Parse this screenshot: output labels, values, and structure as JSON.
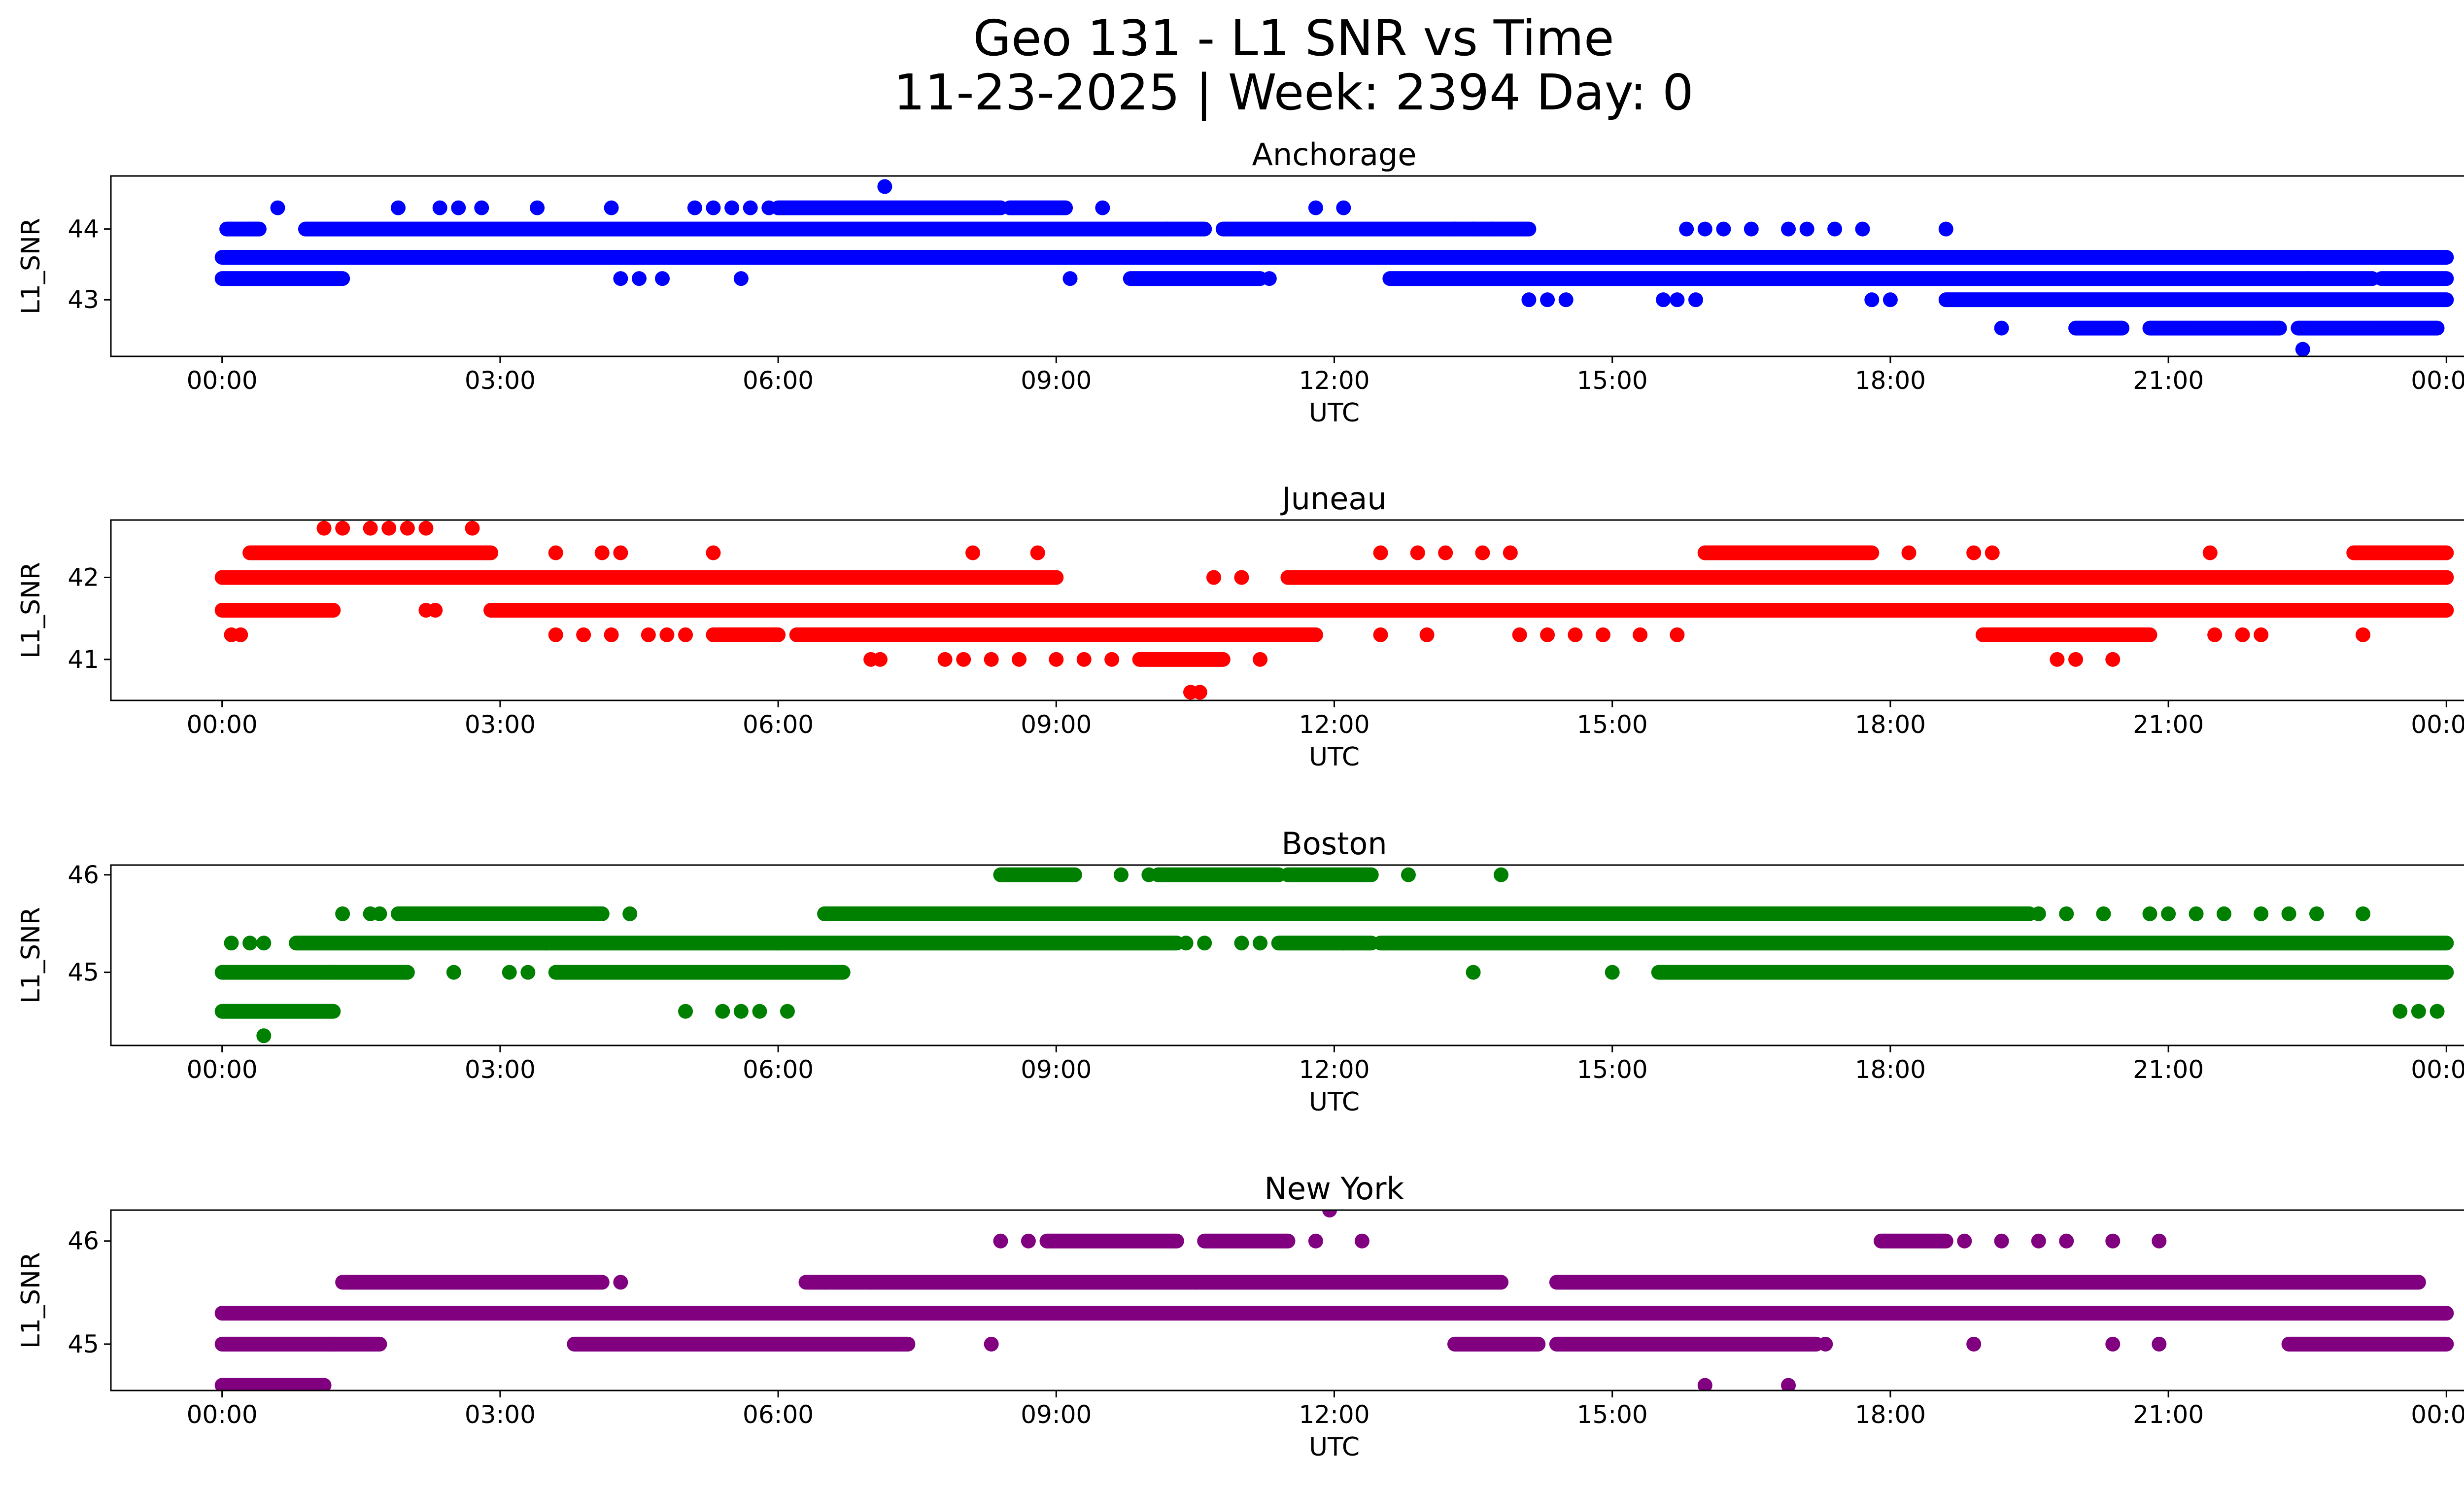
{
  "figure": {
    "title_line1": "Geo 131 - L1 SNR vs Time",
    "title_line2": "11-23-2025 | Week: 2394 Day: 0"
  },
  "chart_data": [
    {
      "type": "scatter",
      "title": "Anchorage",
      "xlabel": "UTC",
      "ylabel": "L1_SNR",
      "color": "#0000ff",
      "xlim": [
        -1.2,
        25.2
      ],
      "ylim": [
        42.2,
        44.75
      ],
      "x_ticks": [
        "00:00",
        "03:00",
        "06:00",
        "09:00",
        "12:00",
        "15:00",
        "18:00",
        "21:00",
        "00:00"
      ],
      "y_ticks": [
        43,
        44
      ],
      "levels": [
        {
          "y": 43.6,
          "segments": [
            [
              0.0,
              24.0
            ]
          ]
        },
        {
          "y": 44.0,
          "segments": [
            [
              0.05,
              0.4
            ],
            [
              0.9,
              10.6
            ],
            [
              10.8,
              13.3
            ],
            [
              13.3,
              14.1
            ]
          ]
        },
        {
          "y": 43.3,
          "segments": [
            [
              0.0,
              1.3
            ],
            [
              9.8,
              11.2
            ],
            [
              12.6,
              23.2
            ],
            [
              23.3,
              24.0
            ]
          ]
        },
        {
          "y": 43.0,
          "segments": [
            [
              18.6,
              24.0
            ]
          ]
        },
        {
          "y": 42.6,
          "segments": [
            [
              20.0,
              20.5
            ],
            [
              20.8,
              22.2
            ],
            [
              22.4,
              23.9
            ]
          ]
        },
        {
          "y": 44.3,
          "segments": [
            [
              6.0,
              8.4
            ],
            [
              8.5,
              9.1
            ]
          ]
        }
      ],
      "points": [
        {
          "x": 0.3,
          "y": 44.0
        },
        {
          "x": 0.35,
          "y": 44.0
        },
        {
          "x": 0.6,
          "y": 44.3
        },
        {
          "x": 1.9,
          "y": 44.3
        },
        {
          "x": 2.35,
          "y": 44.3
        },
        {
          "x": 2.55,
          "y": 44.3
        },
        {
          "x": 2.8,
          "y": 44.3
        },
        {
          "x": 3.4,
          "y": 44.3
        },
        {
          "x": 4.2,
          "y": 44.3
        },
        {
          "x": 5.1,
          "y": 44.3
        },
        {
          "x": 5.3,
          "y": 44.3
        },
        {
          "x": 5.5,
          "y": 44.3
        },
        {
          "x": 5.7,
          "y": 44.3
        },
        {
          "x": 5.9,
          "y": 44.3
        },
        {
          "x": 9.5,
          "y": 44.3
        },
        {
          "x": 11.8,
          "y": 44.3
        },
        {
          "x": 12.1,
          "y": 44.3
        },
        {
          "x": 7.15,
          "y": 44.6
        },
        {
          "x": 4.3,
          "y": 43.3
        },
        {
          "x": 4.5,
          "y": 43.3
        },
        {
          "x": 4.75,
          "y": 43.3
        },
        {
          "x": 5.6,
          "y": 43.3
        },
        {
          "x": 9.15,
          "y": 43.3
        },
        {
          "x": 11.3,
          "y": 43.3
        },
        {
          "x": 10.2,
          "y": 44.0
        },
        {
          "x": 13.5,
          "y": 44.0
        },
        {
          "x": 13.7,
          "y": 44.0
        },
        {
          "x": 15.8,
          "y": 44.0
        },
        {
          "x": 16.0,
          "y": 44.0
        },
        {
          "x": 16.2,
          "y": 44.0
        },
        {
          "x": 16.5,
          "y": 44.0
        },
        {
          "x": 16.9,
          "y": 44.0
        },
        {
          "x": 17.1,
          "y": 44.0
        },
        {
          "x": 17.4,
          "y": 44.0
        },
        {
          "x": 17.7,
          "y": 44.0
        },
        {
          "x": 18.6,
          "y": 44.0
        },
        {
          "x": 14.1,
          "y": 43.0
        },
        {
          "x": 14.3,
          "y": 43.0
        },
        {
          "x": 14.5,
          "y": 43.0
        },
        {
          "x": 15.55,
          "y": 43.0
        },
        {
          "x": 15.7,
          "y": 43.0
        },
        {
          "x": 15.9,
          "y": 43.0
        },
        {
          "x": 17.8,
          "y": 43.0
        },
        {
          "x": 18.0,
          "y": 43.0
        },
        {
          "x": 20.3,
          "y": 43.6
        },
        {
          "x": 21.9,
          "y": 43.6
        },
        {
          "x": 23.6,
          "y": 43.6
        },
        {
          "x": 22.5,
          "y": 43.3
        },
        {
          "x": 19.2,
          "y": 42.6
        },
        {
          "x": 22.45,
          "y": 42.3
        }
      ]
    },
    {
      "type": "scatter",
      "title": "Juneau",
      "xlabel": "UTC",
      "ylabel": "L1_SNR",
      "color": "#ff0000",
      "xlim": [
        -1.2,
        25.2
      ],
      "ylim": [
        40.5,
        42.7
      ],
      "x_ticks": [
        "00:00",
        "03:00",
        "06:00",
        "09:00",
        "12:00",
        "15:00",
        "18:00",
        "21:00",
        "00:00"
      ],
      "y_ticks": [
        41,
        42
      ],
      "levels": [
        {
          "y": 42.0,
          "segments": [
            [
              0.0,
              6.0
            ],
            [
              6.0,
              7.0
            ],
            [
              7.0,
              9.0
            ],
            [
              11.5,
              21.0
            ],
            [
              21.0,
              24.0
            ]
          ]
        },
        {
          "y": 41.6,
          "segments": [
            [
              0.0,
              1.2
            ],
            [
              2.9,
              24.0
            ]
          ]
        },
        {
          "y": 42.3,
          "segments": [
            [
              0.3,
              2.9
            ],
            [
              16.0,
              17.8
            ],
            [
              23.0,
              24.0
            ]
          ]
        },
        {
          "y": 41.3,
          "segments": [
            [
              5.3,
              6.0
            ],
            [
              6.2,
              11.8
            ],
            [
              19.0,
              20.8
            ]
          ]
        },
        {
          "y": 41.0,
          "segments": [
            [
              9.9,
              10.8
            ]
          ]
        }
      ],
      "points": [
        {
          "x": 1.1,
          "y": 42.6
        },
        {
          "x": 1.3,
          "y": 42.6
        },
        {
          "x": 1.6,
          "y": 42.6
        },
        {
          "x": 1.8,
          "y": 42.6
        },
        {
          "x": 2.0,
          "y": 42.6
        },
        {
          "x": 2.2,
          "y": 42.6
        },
        {
          "x": 2.7,
          "y": 42.6
        },
        {
          "x": 3.6,
          "y": 42.3
        },
        {
          "x": 4.1,
          "y": 42.3
        },
        {
          "x": 4.3,
          "y": 42.3
        },
        {
          "x": 5.3,
          "y": 42.3
        },
        {
          "x": 8.1,
          "y": 42.3
        },
        {
          "x": 8.8,
          "y": 42.3
        },
        {
          "x": 12.5,
          "y": 42.3
        },
        {
          "x": 12.9,
          "y": 42.3
        },
        {
          "x": 13.2,
          "y": 42.3
        },
        {
          "x": 13.6,
          "y": 42.3
        },
        {
          "x": 13.9,
          "y": 42.3
        },
        {
          "x": 18.2,
          "y": 42.3
        },
        {
          "x": 18.9,
          "y": 42.3
        },
        {
          "x": 19.1,
          "y": 42.3
        },
        {
          "x": 21.45,
          "y": 42.3
        },
        {
          "x": 0.1,
          "y": 41.3
        },
        {
          "x": 0.2,
          "y": 41.3
        },
        {
          "x": 3.6,
          "y": 41.3
        },
        {
          "x": 3.9,
          "y": 41.3
        },
        {
          "x": 4.2,
          "y": 41.3
        },
        {
          "x": 4.6,
          "y": 41.3
        },
        {
          "x": 4.8,
          "y": 41.3
        },
        {
          "x": 5.0,
          "y": 41.3
        },
        {
          "x": 12.5,
          "y": 41.3
        },
        {
          "x": 13.0,
          "y": 41.3
        },
        {
          "x": 14.0,
          "y": 41.3
        },
        {
          "x": 14.3,
          "y": 41.3
        },
        {
          "x": 14.6,
          "y": 41.3
        },
        {
          "x": 14.9,
          "y": 41.3
        },
        {
          "x": 15.3,
          "y": 41.3
        },
        {
          "x": 15.7,
          "y": 41.3
        },
        {
          "x": 21.5,
          "y": 41.3
        },
        {
          "x": 21.8,
          "y": 41.3
        },
        {
          "x": 22.0,
          "y": 41.3
        },
        {
          "x": 23.1,
          "y": 41.3
        },
        {
          "x": 7.0,
          "y": 41.0
        },
        {
          "x": 7.1,
          "y": 41.0
        },
        {
          "x": 7.8,
          "y": 41.0
        },
        {
          "x": 8.0,
          "y": 41.0
        },
        {
          "x": 8.3,
          "y": 41.0
        },
        {
          "x": 8.6,
          "y": 41.0
        },
        {
          "x": 9.0,
          "y": 41.0
        },
        {
          "x": 9.3,
          "y": 41.0
        },
        {
          "x": 9.6,
          "y": 41.0
        },
        {
          "x": 11.2,
          "y": 41.0
        },
        {
          "x": 19.8,
          "y": 41.0
        },
        {
          "x": 20.0,
          "y": 41.0
        },
        {
          "x": 20.4,
          "y": 41.0
        },
        {
          "x": 10.7,
          "y": 42.0
        },
        {
          "x": 11.0,
          "y": 42.0
        },
        {
          "x": 19.8,
          "y": 42.0
        },
        {
          "x": 2.2,
          "y": 41.6
        },
        {
          "x": 2.3,
          "y": 41.6
        },
        {
          "x": 10.45,
          "y": 40.6
        },
        {
          "x": 10.55,
          "y": 40.6
        }
      ]
    },
    {
      "type": "scatter",
      "title": "Boston",
      "xlabel": "UTC",
      "ylabel": "L1_SNR",
      "color": "#008000",
      "xlim": [
        -1.2,
        25.2
      ],
      "ylim": [
        44.25,
        46.1
      ],
      "x_ticks": [
        "00:00",
        "03:00",
        "06:00",
        "09:00",
        "12:00",
        "15:00",
        "18:00",
        "21:00",
        "00:00"
      ],
      "y_ticks": [
        45,
        46
      ],
      "levels": [
        {
          "y": 45.3,
          "segments": [
            [
              0.8,
              3.5
            ],
            [
              3.5,
              6.0
            ],
            [
              6.0,
              10.3
            ],
            [
              11.4,
              12.4
            ],
            [
              12.5,
              24.0
            ]
          ]
        },
        {
          "y": 45.6,
          "segments": [
            [
              1.9,
              4.1
            ],
            [
              6.5,
              13.5
            ],
            [
              13.5,
              16.8
            ],
            [
              16.8,
              19.5
            ]
          ]
        },
        {
          "y": 45.0,
          "segments": [
            [
              0.0,
              1.2
            ],
            [
              1.2,
              2.0
            ],
            [
              3.6,
              6.7
            ],
            [
              15.5,
              24.0
            ]
          ]
        },
        {
          "y": 44.6,
          "segments": [
            [
              0.0,
              1.2
            ]
          ]
        },
        {
          "y": 46.0,
          "segments": [
            [
              8.4,
              9.2
            ],
            [
              10.1,
              11.4
            ],
            [
              11.5,
              12.4
            ]
          ]
        }
      ],
      "points": [
        {
          "x": 0.1,
          "y": 45.3
        },
        {
          "x": 0.3,
          "y": 45.3
        },
        {
          "x": 0.45,
          "y": 45.3
        },
        {
          "x": 10.4,
          "y": 45.3
        },
        {
          "x": 10.6,
          "y": 45.3
        },
        {
          "x": 11.0,
          "y": 45.3
        },
        {
          "x": 11.2,
          "y": 45.3
        },
        {
          "x": 12.1,
          "y": 45.3
        },
        {
          "x": 1.3,
          "y": 45.6
        },
        {
          "x": 1.6,
          "y": 45.6
        },
        {
          "x": 1.7,
          "y": 45.6
        },
        {
          "x": 4.4,
          "y": 45.6
        },
        {
          "x": 6.7,
          "y": 45.6
        },
        {
          "x": 20.3,
          "y": 45.6
        },
        {
          "x": 20.8,
          "y": 45.6
        },
        {
          "x": 21.0,
          "y": 45.6
        },
        {
          "x": 21.3,
          "y": 45.6
        },
        {
          "x": 21.6,
          "y": 45.6
        },
        {
          "x": 22.0,
          "y": 45.6
        },
        {
          "x": 22.3,
          "y": 45.6
        },
        {
          "x": 22.6,
          "y": 45.6
        },
        {
          "x": 23.1,
          "y": 45.6
        },
        {
          "x": 19.6,
          "y": 45.6
        },
        {
          "x": 19.9,
          "y": 45.6
        },
        {
          "x": 2.5,
          "y": 45.0
        },
        {
          "x": 3.1,
          "y": 45.0
        },
        {
          "x": 3.3,
          "y": 45.0
        },
        {
          "x": 13.5,
          "y": 45.0
        },
        {
          "x": 15.0,
          "y": 45.0
        },
        {
          "x": 5.0,
          "y": 44.6
        },
        {
          "x": 5.4,
          "y": 44.6
        },
        {
          "x": 5.6,
          "y": 44.6
        },
        {
          "x": 5.8,
          "y": 44.6
        },
        {
          "x": 6.1,
          "y": 44.6
        },
        {
          "x": 23.5,
          "y": 44.6
        },
        {
          "x": 23.7,
          "y": 44.6
        },
        {
          "x": 23.9,
          "y": 44.6
        },
        {
          "x": 0.45,
          "y": 44.35
        },
        {
          "x": 9.7,
          "y": 46.0
        },
        {
          "x": 10.0,
          "y": 46.0
        },
        {
          "x": 12.8,
          "y": 46.0
        },
        {
          "x": 13.8,
          "y": 46.0
        }
      ]
    },
    {
      "type": "scatter",
      "title": "New York",
      "xlabel": "UTC",
      "ylabel": "L1_SNR",
      "color": "#800080",
      "xlim": [
        -1.2,
        25.2
      ],
      "ylim": [
        44.55,
        46.3
      ],
      "x_ticks": [
        "00:00",
        "03:00",
        "06:00",
        "09:00",
        "12:00",
        "15:00",
        "18:00",
        "21:00",
        "00:00"
      ],
      "y_ticks": [
        45,
        46
      ],
      "levels": [
        {
          "y": 45.3,
          "segments": [
            [
              0.0,
              24.0
            ]
          ]
        },
        {
          "y": 45.6,
          "segments": [
            [
              1.3,
              4.1
            ],
            [
              6.3,
              7.0
            ],
            [
              7.0,
              10.5
            ],
            [
              10.5,
              13.8
            ],
            [
              14.4,
              23.7
            ]
          ]
        },
        {
          "y": 45.0,
          "segments": [
            [
              0.0,
              1.2
            ],
            [
              1.2,
              1.7
            ],
            [
              3.8,
              7.4
            ],
            [
              13.3,
              14.2
            ],
            [
              14.4,
              17.2
            ],
            [
              22.3,
              24.0
            ]
          ]
        },
        {
          "y": 44.6,
          "segments": [
            [
              0.0,
              1.1
            ]
          ]
        },
        {
          "y": 46.0,
          "segments": [
            [
              8.9,
              10.3
            ],
            [
              10.6,
              11.5
            ],
            [
              17.9,
              18.6
            ]
          ]
        }
      ],
      "points": [
        {
          "x": 4.3,
          "y": 45.6
        },
        {
          "x": 6.5,
          "y": 45.6
        },
        {
          "x": 8.3,
          "y": 45.0
        },
        {
          "x": 18.9,
          "y": 45.0
        },
        {
          "x": 20.4,
          "y": 45.0
        },
        {
          "x": 20.9,
          "y": 45.0
        },
        {
          "x": 17.3,
          "y": 45.0
        },
        {
          "x": 8.4,
          "y": 46.0
        },
        {
          "x": 8.7,
          "y": 46.0
        },
        {
          "x": 11.8,
          "y": 46.0
        },
        {
          "x": 12.3,
          "y": 46.0
        },
        {
          "x": 18.8,
          "y": 46.0
        },
        {
          "x": 19.2,
          "y": 46.0
        },
        {
          "x": 19.6,
          "y": 46.0
        },
        {
          "x": 19.9,
          "y": 46.0
        },
        {
          "x": 20.4,
          "y": 46.0
        },
        {
          "x": 20.9,
          "y": 46.0
        },
        {
          "x": 11.95,
          "y": 46.3
        },
        {
          "x": 16.0,
          "y": 44.6
        },
        {
          "x": 16.9,
          "y": 44.6
        }
      ]
    }
  ]
}
